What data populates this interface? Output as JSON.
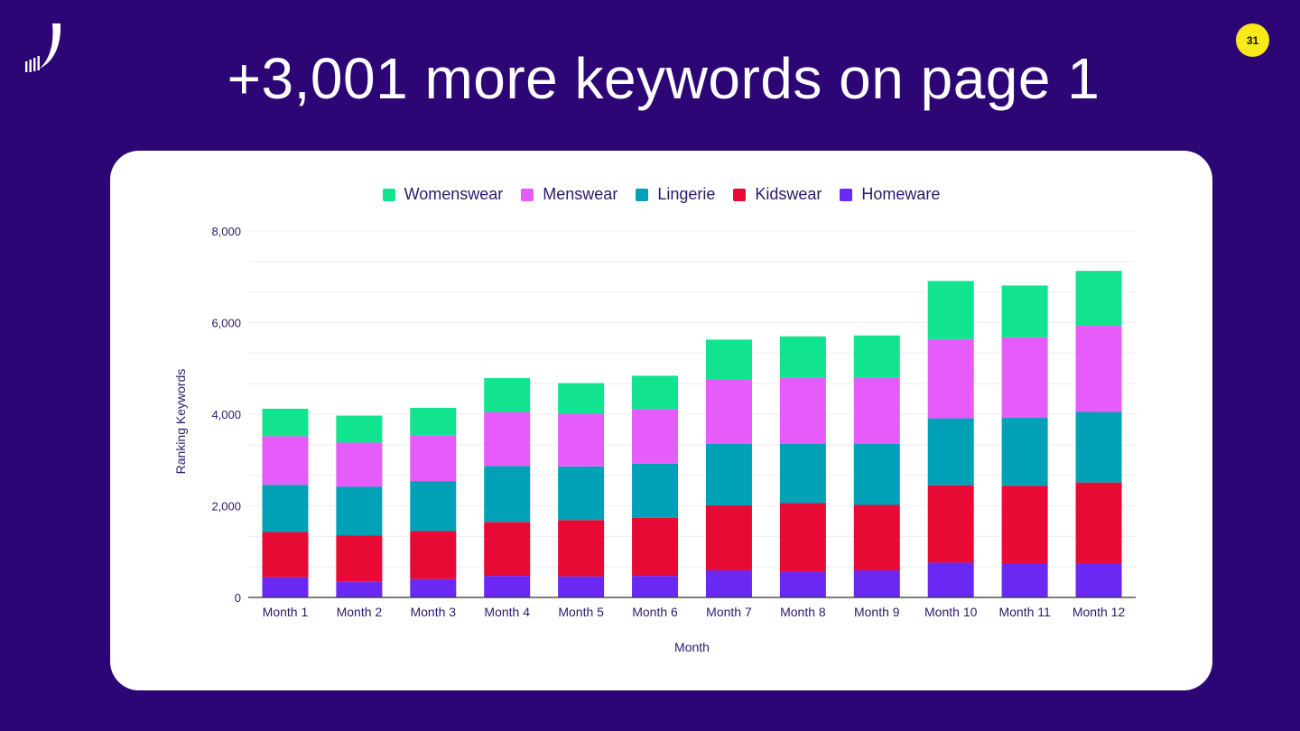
{
  "slide": {
    "title": "+3,001 more keywords on page 1",
    "page_number": "31"
  },
  "colors": {
    "background": "#2c0675",
    "badge": "#f7e91a",
    "text_dark": "#2c1a6b"
  },
  "chart_data": {
    "type": "bar",
    "stacked": true,
    "title": "",
    "xlabel": "Month",
    "ylabel": "Ranking Keywords",
    "ylim": [
      0,
      8000
    ],
    "yticks": [
      0,
      2000,
      4000,
      6000,
      8000
    ],
    "ytick_labels": [
      "0",
      "2,000",
      "4,000",
      "6,000",
      "8,000"
    ],
    "grid": true,
    "legend_position": "top",
    "categories": [
      "Month 1",
      "Month 2",
      "Month 3",
      "Month 4",
      "Month 5",
      "Month 6",
      "Month 7",
      "Month 8",
      "Month 9",
      "Month 10",
      "Month 11",
      "Month 12"
    ],
    "series": [
      {
        "name": "Homeware",
        "color": "#6929f3",
        "values": [
          440,
          340,
          400,
          470,
          460,
          470,
          590,
          560,
          590,
          760,
          750,
          750
        ]
      },
      {
        "name": "Kidswear",
        "color": "#e60a34",
        "values": [
          990,
          1010,
          1050,
          1180,
          1230,
          1270,
          1420,
          1500,
          1430,
          1690,
          1690,
          1760
        ]
      },
      {
        "name": "Lingerie",
        "color": "#00a1b6",
        "values": [
          1030,
          1070,
          1090,
          1220,
          1170,
          1180,
          1340,
          1290,
          1330,
          1460,
          1480,
          1540
        ]
      },
      {
        "name": "Menswear",
        "color": "#e65cfb",
        "values": [
          1060,
          960,
          1000,
          1180,
          1150,
          1190,
          1400,
          1440,
          1440,
          1730,
          1760,
          1880
        ]
      },
      {
        "name": "Womenswear",
        "color": "#12e38e",
        "values": [
          600,
          590,
          600,
          740,
          670,
          730,
          880,
          910,
          930,
          1270,
          1130,
          1200
        ]
      }
    ],
    "legend_order": [
      "Womenswear",
      "Menswear",
      "Lingerie",
      "Kidswear",
      "Homeware"
    ]
  }
}
